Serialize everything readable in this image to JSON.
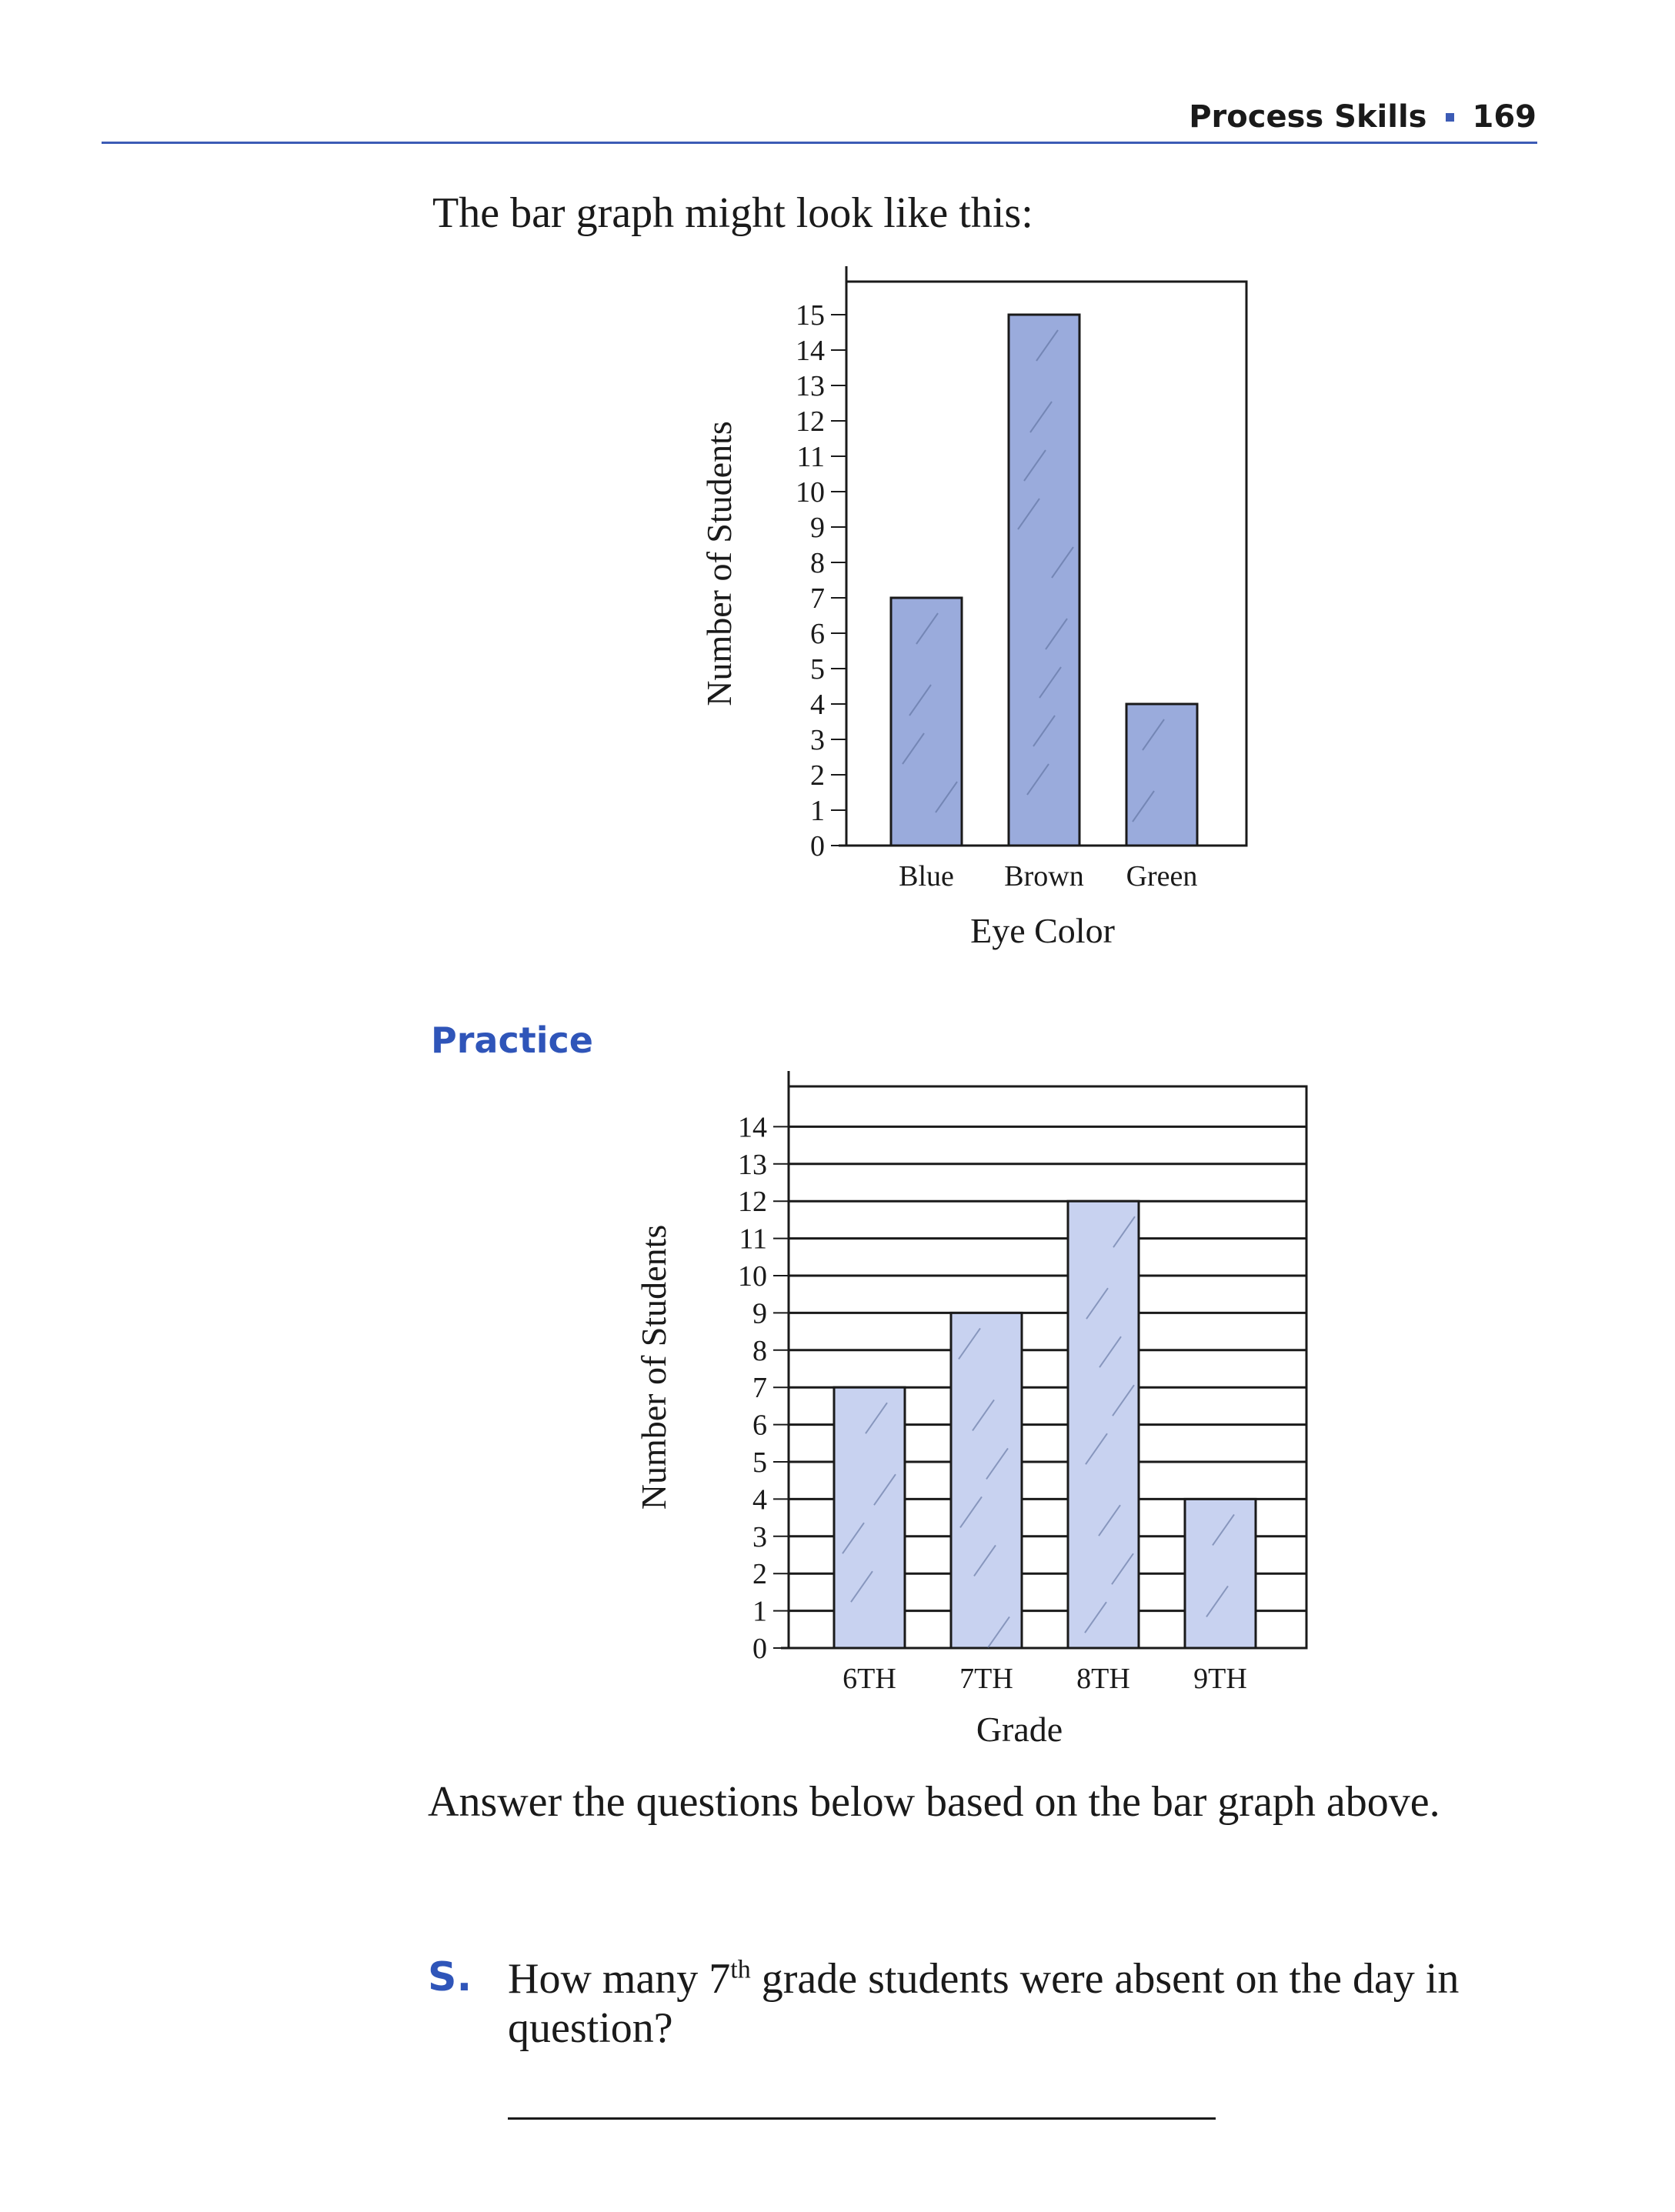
{
  "header": {
    "section": "Process Skills",
    "page_number": "169"
  },
  "intro": "The bar graph might look like this:",
  "practice_heading": "Practice",
  "instructions": "Answer the questions below based on the bar graph above.",
  "question": {
    "letter": "S.",
    "text_before": "How many 7",
    "superscript": "th",
    "text_after": " grade students were absent on the day in question?"
  },
  "colors": {
    "accent": "#2f55b9",
    "bar_dark": "#9aabdc",
    "bar_light": "#c8d2f0"
  },
  "chart_data": [
    {
      "type": "bar",
      "categories": [
        "Blue",
        "Brown",
        "Green"
      ],
      "values": [
        7,
        15,
        4
      ],
      "title": "",
      "xlabel": "Eye Color",
      "ylabel": "Number of Students",
      "ylim": [
        0,
        15
      ],
      "yticks": [
        "0",
        "1",
        "2",
        "3",
        "4",
        "5",
        "6",
        "7",
        "8",
        "9",
        "10",
        "11",
        "12",
        "13",
        "14",
        "15"
      ],
      "grid": false
    },
    {
      "type": "bar",
      "categories": [
        "6TH",
        "7TH",
        "8TH",
        "9TH"
      ],
      "values": [
        7,
        9,
        12,
        4
      ],
      "title": "",
      "xlabel": "Grade",
      "ylabel": "Number of Students",
      "ylim": [
        0,
        15
      ],
      "yticks": [
        "0",
        "1",
        "2",
        "3",
        "4",
        "5",
        "6",
        "7",
        "8",
        "9",
        "10",
        "11",
        "12",
        "13",
        "14"
      ],
      "grid": true
    }
  ]
}
